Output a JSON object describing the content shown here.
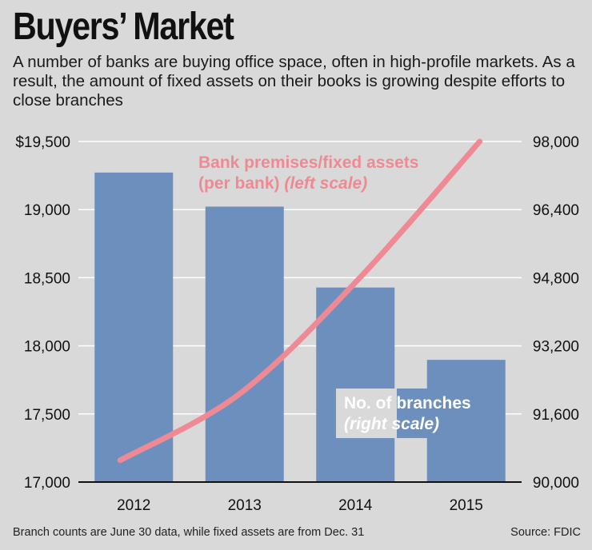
{
  "title": "Buyers’ Market",
  "subtitle": "A number of banks are buying office space, often in high-profile markets. As a result, the amount of fixed assets on their books is growing despite efforts to close branches",
  "footnote": "Branch counts are June 30 data, while fixed assets are from Dec. 31",
  "source": "Source: FDIC",
  "colors": {
    "bars": "#6c8fbd",
    "line": "#ef8a94",
    "background": "#d9d9d9",
    "grid": "#ffffff"
  },
  "chart_data": {
    "type": "bar",
    "categories": [
      "2012",
      "2013",
      "2014",
      "2015"
    ],
    "series": [
      {
        "name": "No. of branches",
        "label_line2": "(right scale)",
        "type": "bar",
        "axis": "right",
        "values": [
          97270,
          96470,
          94570,
          92870
        ]
      },
      {
        "name": "Bank premises/fixed assets",
        "label_line2": "(per bank) (left scale)",
        "type": "line",
        "axis": "left",
        "values": [
          17160,
          17650,
          18500,
          19500
        ]
      }
    ],
    "left_axis": {
      "ylim": [
        17000,
        19500
      ],
      "ticks": [
        "$19,500",
        "19,000",
        "18,500",
        "18,000",
        "17,500",
        "17,000"
      ],
      "tick_values": [
        19500,
        19000,
        18500,
        18000,
        17500,
        17000
      ]
    },
    "right_axis": {
      "ylim": [
        90000,
        98000
      ],
      "ticks": [
        "98,000",
        "96,400",
        "94,800",
        "93,200",
        "91,600",
        "90,000"
      ],
      "tick_values": [
        98000,
        96400,
        94800,
        93200,
        91600,
        90000
      ]
    },
    "grid": true
  }
}
